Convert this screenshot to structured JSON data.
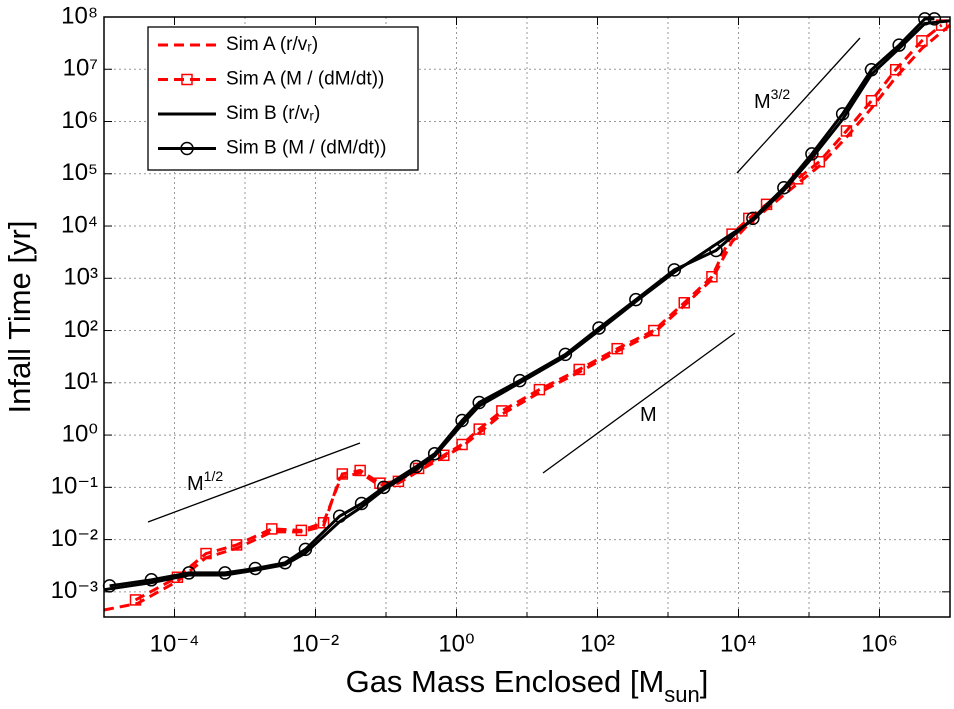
{
  "chart_data": {
    "type": "line",
    "x_label": {
      "text": "Gas Mass Enclosed [M",
      "sub": "sun",
      "tail": "]"
    },
    "y_label": "Infall Time [yr]",
    "xscale": "log",
    "yscale": "log",
    "grid": true,
    "legend_position": "upper left",
    "xlim": [
      1e-05,
      10000000.0
    ],
    "ylim": [
      0.00033,
      100000000.0
    ],
    "xticks": [
      {
        "value": 0.0001,
        "label": "10⁻⁴"
      },
      {
        "value": 0.01,
        "label": "10⁻²"
      },
      {
        "value": 1,
        "label": "10⁰"
      },
      {
        "value": 100,
        "label": "10²"
      },
      {
        "value": 10000,
        "label": "10⁴"
      },
      {
        "value": 1000000,
        "label": "10⁶"
      }
    ],
    "xminor": [
      0.001,
      0.1,
      10,
      1000,
      100000
    ],
    "yticks": [
      {
        "value": 0.001,
        "label": "10⁻³"
      },
      {
        "value": 0.01,
        "label": "10⁻²"
      },
      {
        "value": 0.1,
        "label": "10⁻¹"
      },
      {
        "value": 1,
        "label": "10⁰"
      },
      {
        "value": 10,
        "label": "10¹"
      },
      {
        "value": 100,
        "label": "10²"
      },
      {
        "value": 1000,
        "label": "10³"
      },
      {
        "value": 10000,
        "label": "10⁴"
      },
      {
        "value": 100000,
        "label": "10⁵"
      },
      {
        "value": 1000000,
        "label": "10⁶"
      },
      {
        "value": 10000000,
        "label": "10⁷"
      },
      {
        "value": 100000000,
        "label": "10⁸"
      }
    ],
    "annotations": [
      {
        "text": "M",
        "sup": "1/2"
      },
      {
        "text": "M"
      },
      {
        "text": "M",
        "sup": "3/2"
      }
    ],
    "series": [
      {
        "name": "Sim A (r/vᵣ)",
        "color": "#ff0000",
        "dash": true,
        "marker": null,
        "x": [
          1e-05,
          3e-05,
          0.00011,
          0.00028,
          0.0008,
          0.0024,
          0.0063,
          0.013,
          0.022,
          0.043,
          0.08,
          0.15,
          0.3,
          0.66,
          1.2,
          2.1,
          4.4,
          15,
          55,
          190,
          630,
          1700,
          4200,
          8100,
          14000.0,
          25000.0,
          69000.0,
          140000.0,
          340000.0,
          770000.0,
          1700000.0,
          4000000.0,
          10000000.0
        ],
        "values": [
          0.00045,
          0.0006,
          0.0016,
          0.0045,
          0.007,
          0.014,
          0.014,
          0.018,
          0.15,
          0.19,
          0.11,
          0.12,
          0.21,
          0.38,
          0.6,
          1.1,
          2.5,
          6.5,
          16,
          40,
          90,
          300,
          950,
          5000,
          11000.0,
          21000.0,
          65000.0,
          140000.0,
          500000.0,
          1800000.0,
          7000000.0,
          25000000.0,
          70000000.0
        ]
      },
      {
        "name": "Sim A (M / (dM/dt))",
        "color": "#ff0000",
        "dash": true,
        "marker": "square",
        "x": [
          2.8e-05,
          0.00011,
          0.00028,
          0.00076,
          0.0024,
          0.0063,
          0.013,
          0.024,
          0.043,
          0.082,
          0.15,
          0.29,
          0.66,
          1.2,
          2.1,
          4.4,
          15,
          55,
          190,
          630,
          1700,
          4200,
          8100,
          14000.0,
          25000.0,
          69000.0,
          140000.0,
          340000.0,
          770000.0,
          1700000.0,
          4000000.0,
          7600000.0
        ],
        "values": [
          0.0007,
          0.0019,
          0.0054,
          0.0079,
          0.016,
          0.015,
          0.021,
          0.18,
          0.21,
          0.12,
          0.13,
          0.23,
          0.41,
          0.66,
          1.3,
          2.9,
          7.4,
          18,
          45,
          100,
          340,
          1070,
          7000,
          14000.0,
          26000.0,
          80000.0,
          170000.0,
          660000.0,
          2500000.0,
          9800000.0,
          35000000.0,
          70000000.0
        ]
      },
      {
        "name": "Sim B (r/vᵣ)",
        "color": "#000000",
        "dash": false,
        "marker": null,
        "x": [
          1e-05,
          4.7e-05,
          0.00016,
          0.00052,
          0.0014,
          0.0037,
          0.0072,
          0.022,
          0.045,
          0.093,
          0.27,
          0.49,
          1.2,
          2.1,
          7.9,
          35,
          105,
          350,
          1230,
          4800,
          16000.0,
          44000.0,
          110000.0,
          300000.0,
          770000.0,
          1900000.0,
          4400000.0,
          10000000.0
        ],
        "values": [
          0.0011,
          0.0015,
          0.0021,
          0.0021,
          0.0026,
          0.0033,
          0.0055,
          0.022,
          0.042,
          0.09,
          0.22,
          0.4,
          1.6,
          3.6,
          10,
          32,
          100,
          360,
          1300,
          4500,
          13000.0,
          48000.0,
          200000.0,
          1100000.0,
          8000000.0,
          25000000.0,
          75000000.0,
          85000000.0
        ]
      },
      {
        "name": "Sim B (M / (dM/dt))",
        "color": "#000000",
        "dash": false,
        "marker": "circle",
        "x": [
          1.2e-05,
          4.7e-05,
          0.00016,
          0.00052,
          0.0014,
          0.0037,
          0.0072,
          0.022,
          0.045,
          0.093,
          0.27,
          0.49,
          1.2,
          2.1,
          7.9,
          35,
          105,
          350,
          1230,
          4800,
          16000.0,
          44000.0,
          110000.0,
          300000.0,
          770000.0,
          1900000.0,
          4400000.0,
          6000000.0
        ],
        "values": [
          0.0013,
          0.0017,
          0.0023,
          0.0023,
          0.0028,
          0.0036,
          0.0065,
          0.028,
          0.049,
          0.1,
          0.25,
          0.44,
          1.9,
          4.2,
          11,
          35,
          112,
          390,
          1450,
          3400,
          14000.0,
          54000.0,
          240000.0,
          1400000.0,
          9800000.0,
          29000000.0,
          92000000.0,
          92000000.0
        ]
      }
    ]
  }
}
